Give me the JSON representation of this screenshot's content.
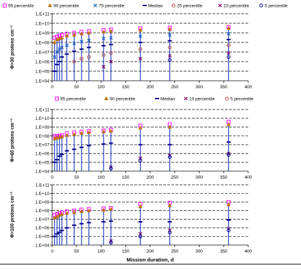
{
  "chart_data": [
    {
      "type": "scatter",
      "ylabel": "Φ>30 protons cm⁻²",
      "ylabel_sub": ">30",
      "legend": [
        {
          "label": "95 percentile",
          "color": "#ff00ff",
          "marker": "square-open"
        },
        {
          "label": "90 percentile",
          "color": "#c07000",
          "marker": "triangle"
        },
        {
          "label": "75 percentile",
          "color": "#1f5fbf",
          "marker": "x"
        },
        {
          "label": "Median",
          "color": "#00008b",
          "marker": "dash"
        },
        {
          "label": "25 percentile",
          "color": "#c04040",
          "marker": "circle-open"
        },
        {
          "label": "10 percentile",
          "color": "#7f0060",
          "marker": "x"
        },
        {
          "label": "5 percentile",
          "color": "#00008b",
          "marker": "circle-open"
        }
      ],
      "x_ticks": [
        "0",
        "50",
        "100",
        "150",
        "200",
        "250",
        "300",
        "350",
        "400"
      ],
      "y_ticks": [
        "1.E+04",
        "1.E+05",
        "1.E+06",
        "1.E+07",
        "1.E+08",
        "1.E+09",
        "1.E+10",
        "1.E+11"
      ],
      "xlim": [
        0,
        400
      ],
      "ylim": [
        10000,
        100000000000
      ],
      "log_y": true,
      "grid": "horizontal",
      "legend_position": "top",
      "x": [
        5,
        10,
        15,
        20,
        30,
        45,
        60,
        75,
        105,
        120,
        180,
        240,
        360
      ],
      "series": [
        {
          "name": "95 percentile",
          "values": [
            300000000.0,
            400000000.0,
            500000000.0,
            600000000.0,
            800000000.0,
            1000000000.0,
            1300000000.0,
            1500000000.0,
            2000000000.0,
            2200000000.0,
            3000000000.0,
            3500000000.0,
            4000000000.0
          ]
        },
        {
          "name": "90 percentile",
          "values": [
            100000000.0,
            200000000.0,
            250000000.0,
            300000000.0,
            500000000.0,
            600000000.0,
            800000000.0,
            1000000000.0,
            1300000000.0,
            1500000000.0,
            2000000000.0,
            2400000000.0,
            3000000000.0
          ]
        },
        {
          "name": "75 percentile",
          "values": [
            3000000.0,
            10000000.0,
            20000000.0,
            30000000.0,
            50000000.0,
            80000000.0,
            120000000.0,
            160000000.0,
            250000000.0,
            300000000.0,
            450000000.0,
            600000000.0,
            800000000.0
          ]
        },
        {
          "name": "Median",
          "values": [
            100000.0,
            500000.0,
            1000000.0,
            3000000.0,
            6000000.0,
            12000000.0,
            20000000.0,
            30000000.0,
            45000000.0,
            60000000.0,
            100000000.0,
            150000000.0,
            200000000.0
          ]
        },
        {
          "name": "25 percentile",
          "values": [
            null,
            null,
            null,
            null,
            null,
            1000000.0,
            2000000.0,
            3000000.0,
            5000000.0,
            8000000.0,
            20000000.0,
            30000000.0,
            50000000.0
          ]
        },
        {
          "name": "10 percentile",
          "values": [
            null,
            null,
            null,
            null,
            null,
            null,
            null,
            null,
            300000.0,
            1000000.0,
            2000000.0,
            4000000.0,
            8000000.0
          ]
        },
        {
          "name": "5 percentile",
          "values": [
            null,
            null,
            null,
            null,
            null,
            null,
            null,
            null,
            null,
            null,
            null,
            1500000.0,
            3000000.0
          ]
        }
      ]
    },
    {
      "type": "scatter",
      "ylabel": "Φ>60 protons cm⁻²",
      "ylabel_sub": ">60",
      "legend": [
        {
          "label": "95 percentile",
          "color": "#ff00ff",
          "marker": "square-open"
        },
        {
          "label": "90 percentile",
          "color": "#c07000",
          "marker": "triangle"
        },
        {
          "label": "Median",
          "color": "#00008b",
          "marker": "dash"
        },
        {
          "label": "10 percentile",
          "color": "#7f0060",
          "marker": "x"
        },
        {
          "label": "5 percentile",
          "color": "#c04040",
          "marker": "circle-open"
        }
      ],
      "x_ticks": [
        "0",
        "50",
        "100",
        "150",
        "200",
        "250",
        "300",
        "350",
        "400"
      ],
      "y_ticks": [
        "1.E+04",
        "1.E+05",
        "1.E+06",
        "1.E+07",
        "1.E+08",
        "1.E+09",
        "1.E+10",
        "1.E+11"
      ],
      "xlim": [
        0,
        400
      ],
      "ylim": [
        10000,
        100000000000
      ],
      "log_y": true,
      "grid": "horizontal",
      "legend_position": "top",
      "x": [
        5,
        10,
        15,
        20,
        30,
        45,
        60,
        75,
        105,
        120,
        180,
        240,
        360
      ],
      "series": [
        {
          "name": "95 percentile",
          "values": [
            100000000.0,
            100000000.0,
            100000000.0,
            120000000.0,
            200000000.0,
            250000000.0,
            300000000.0,
            350000000.0,
            400000000.0,
            500000000.0,
            1500000000.0,
            2000000000.0,
            4000000000.0
          ]
        },
        {
          "name": "90 percentile",
          "values": [
            50000000.0,
            60000000.0,
            70000000.0,
            80000000.0,
            120000000.0,
            150000000.0,
            200000000.0,
            250000000.0,
            300000000.0,
            350000000.0,
            800000000.0,
            1000000000.0,
            2000000000.0
          ]
        },
        {
          "name": "Median",
          "values": [
            100000.0,
            200000.0,
            500000.0,
            800000.0,
            2000000.0,
            3000000.0,
            5000000.0,
            8000000.0,
            12000000.0,
            15000000.0,
            10000000.0,
            10000000.0,
            20000000.0
          ]
        },
        {
          "name": "10 percentile",
          "values": [
            null,
            null,
            null,
            null,
            null,
            null,
            null,
            null,
            null,
            30000.0,
            300000.0,
            600000.0,
            1000000.0
          ]
        },
        {
          "name": "5 percentile",
          "values": [
            null,
            null,
            null,
            null,
            null,
            null,
            null,
            null,
            null,
            20000.0,
            150000.0,
            400000.0,
            700000.0
          ]
        }
      ]
    },
    {
      "type": "scatter",
      "ylabel": "Φ>100 protons cm⁻²",
      "ylabel_sub": ">100",
      "x_ticks": [
        "0",
        "50",
        "100",
        "150",
        "200",
        "250",
        "300",
        "350",
        "400"
      ],
      "y_ticks": [
        "1.E+04",
        "1.E+05",
        "1.E+06",
        "1.E+07",
        "1.E+08",
        "1.E+09",
        "1.E+10",
        "1.E+11"
      ],
      "xlabel": "Mission duration, d",
      "xlim": [
        0,
        400
      ],
      "ylim": [
        10000,
        100000000000
      ],
      "log_y": true,
      "grid": "horizontal",
      "x": [
        5,
        10,
        15,
        20,
        30,
        45,
        60,
        75,
        105,
        120,
        180,
        240,
        360
      ],
      "series": [
        {
          "name": "95 percentile",
          "values": [
            30000000.0,
            40000000.0,
            50000000.0,
            60000000.0,
            80000000.0,
            100000000.0,
            130000000.0,
            150000000.0,
            180000000.0,
            200000000.0,
            600000000.0,
            800000000.0,
            1000000000.0
          ]
        },
        {
          "name": "90 percentile",
          "values": [
            15000000.0,
            20000000.0,
            30000000.0,
            40000000.0,
            50000000.0,
            60000000.0,
            80000000.0,
            100000000.0,
            120000000.0,
            150000000.0,
            300000000.0,
            400000000.0,
            500000000.0
          ]
        },
        {
          "name": "Median",
          "values": [
            100000.0,
            200000.0,
            300000.0,
            500000.0,
            1000000.0,
            2000000.0,
            3000000.0,
            4000000.0,
            5000000.0,
            6000000.0,
            5000000.0,
            5000000.0,
            8000000.0
          ]
        },
        {
          "name": "10 percentile",
          "values": [
            null,
            null,
            null,
            null,
            null,
            null,
            null,
            null,
            null,
            30000.0,
            200000.0,
            500000.0,
            800000.0
          ]
        },
        {
          "name": "5 percentile",
          "values": [
            null,
            null,
            null,
            null,
            null,
            null,
            null,
            null,
            null,
            20000.0,
            100000.0,
            300000.0,
            500000.0
          ]
        }
      ]
    }
  ]
}
